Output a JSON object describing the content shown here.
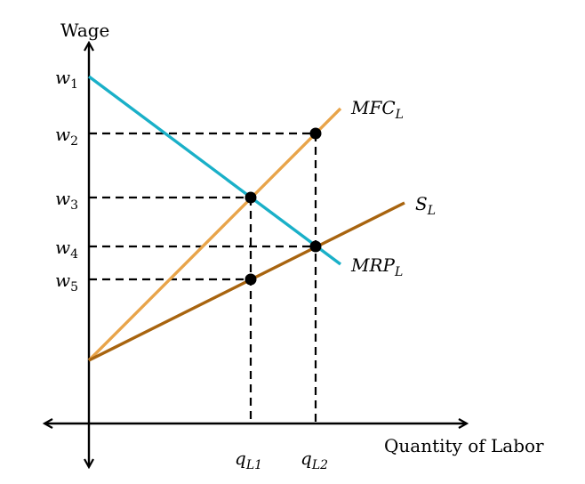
{
  "axes": {
    "y_label": "Wage",
    "x_label": "Quantity of Labor"
  },
  "wage_ticks": [
    {
      "sym": "w",
      "sub": "1"
    },
    {
      "sym": "w",
      "sub": "2"
    },
    {
      "sym": "w",
      "sub": "3"
    },
    {
      "sym": "w",
      "sub": "4"
    },
    {
      "sym": "w",
      "sub": "5"
    }
  ],
  "quantity_ticks": [
    {
      "sym": "q",
      "sub": "L1"
    },
    {
      "sym": "q",
      "sub": "L2"
    }
  ],
  "curves": {
    "mfc": {
      "main": "MFC",
      "sub": "L",
      "color": "#e8a44a"
    },
    "mrp": {
      "main": "MRP",
      "sub": "L",
      "color": "#1ab0c8"
    },
    "supply": {
      "main": "S",
      "sub": "L",
      "color": "#a8640f"
    }
  }
}
